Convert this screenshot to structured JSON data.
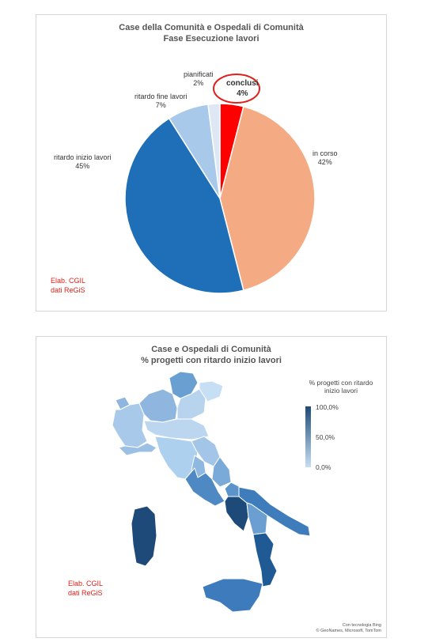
{
  "chart_data": [
    {
      "type": "pie",
      "title": "Case della Comunità e Ospedali di Comunità",
      "subtitle": "Fase Esecuzione lavori",
      "categories": [
        "conclusi",
        "in corso",
        "ritardo inizio lavori",
        "ritardo fine lavori",
        "pianificati"
      ],
      "values": [
        4,
        42,
        45,
        7,
        2
      ],
      "value_labels": [
        "4%",
        "42%",
        "45%",
        "7%",
        "2%"
      ],
      "colors": [
        "#ff0000",
        "#f4ab84",
        "#1f6fb8",
        "#a9c9ea",
        "#dde8f4"
      ],
      "highlight": "conclusi",
      "highlight_color": "#e0201b",
      "source": [
        "Elab. CGIL",
        "dati ReGiS"
      ]
    },
    {
      "type": "heatmap",
      "subtype": "choropleth-map",
      "title": "Case e Ospedali di Comunità",
      "subtitle": "% progetti con ritardo inizio lavori",
      "legend": {
        "title_lines": [
          "% progetti con ritardo",
          "inizio lavori"
        ],
        "ticks": [
          "100,0%",
          "50,0%",
          "0,0%"
        ],
        "color_high": "#1d4a78",
        "color_low": "#c7dff5"
      },
      "source": [
        "Elab. CGIL",
        "dati ReGiS"
      ],
      "credit": [
        "Con tecnologia Bing",
        "© GeoNames, Microsoft, TomTom"
      ]
    }
  ]
}
